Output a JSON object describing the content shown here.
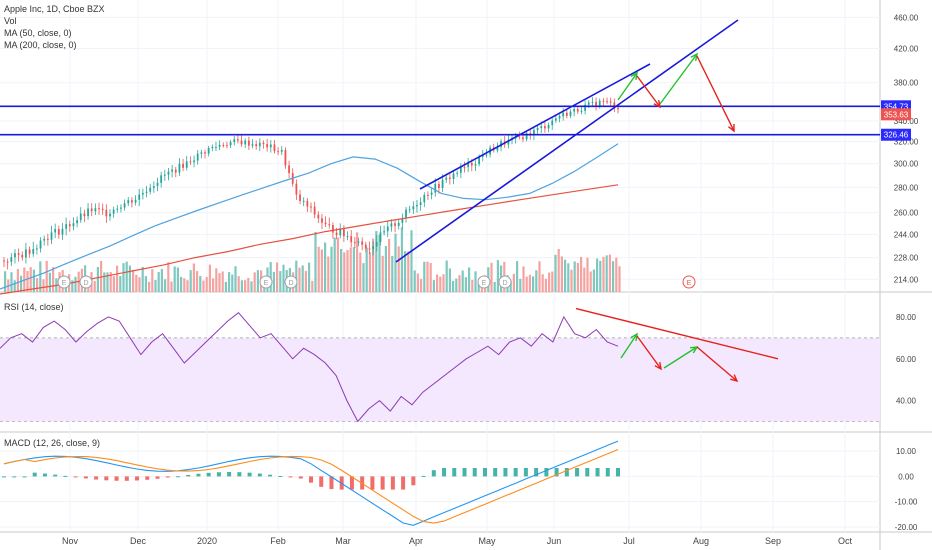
{
  "chart_data": [
    {
      "panel": "price",
      "type": "candlestick",
      "title": "Apple Inc, 1D, Cboe BZX",
      "legend": [
        "Vol",
        "MA (50, close, 0)",
        "MA (200, close, 0)"
      ],
      "x_ticks": [
        "Nov",
        "Dec",
        "2020",
        "Feb",
        "Mar",
        "Apr",
        "May",
        "Jun",
        "Jul",
        "Aug",
        "Sep",
        "Oct"
      ],
      "y_ticks": [
        214.0,
        228.0,
        244.0,
        260.0,
        280.0,
        300.0,
        320.0,
        340.0,
        380.0,
        420.0,
        460.0
      ],
      "ylim": [
        208,
        470
      ],
      "scale": "log",
      "price_labels": [
        {
          "value": "354.73",
          "color": "#2a2aff",
          "y": 354.73
        },
        {
          "value": "353.63",
          "color": "#ef5350",
          "y": 346.5
        },
        {
          "value": "326.46",
          "color": "#2a2aff",
          "y": 326.46
        }
      ],
      "horizontal_lines": [
        354.73,
        326.46
      ],
      "close_series_approx": [
        226,
        229,
        235,
        243,
        248,
        255,
        262,
        260,
        266,
        271,
        281,
        290,
        297,
        305,
        313,
        318,
        320,
        318,
        316,
        310,
        272,
        262,
        250,
        245,
        240,
        235,
        245,
        254,
        265,
        276,
        284,
        293,
        300,
        310,
        318,
        322,
        328,
        335,
        345,
        350,
        356,
        360,
        354
      ],
      "ma50_approx": [
        208,
        213,
        218,
        224,
        230,
        236,
        243,
        250,
        256,
        262,
        268,
        274,
        280,
        286,
        292,
        300,
        306,
        304,
        296,
        285,
        275,
        271,
        270,
        272,
        275,
        283,
        293,
        305,
        318
      ],
      "ma200_approx": [
        205,
        208,
        211,
        215,
        219,
        223,
        228,
        232,
        237,
        241,
        246,
        250,
        254,
        258,
        262,
        266,
        270,
        274,
        278,
        282
      ],
      "event_markers": [
        "E",
        "D",
        "E",
        "D",
        "E",
        "D",
        "E"
      ]
    },
    {
      "panel": "rsi",
      "type": "line",
      "title": "RSI (14, close)",
      "y_ticks": [
        40.0,
        60.0,
        80.0
      ],
      "ylim": [
        25,
        90
      ],
      "band": [
        30,
        70
      ],
      "values_approx": [
        65,
        70,
        72,
        68,
        75,
        78,
        74,
        68,
        73,
        77,
        80,
        78,
        70,
        62,
        68,
        72,
        65,
        58,
        63,
        68,
        73,
        78,
        82,
        76,
        70,
        72,
        66,
        60,
        65,
        62,
        58,
        52,
        40,
        30,
        36,
        40,
        35,
        42,
        38,
        44,
        48,
        52,
        56,
        60,
        63,
        66,
        62,
        68,
        70,
        66,
        72,
        68,
        80,
        72,
        70,
        74,
        68,
        66
      ]
    },
    {
      "panel": "macd",
      "type": "line+bar",
      "title": "MACD (12, 26, close, 9)",
      "y_ticks": [
        10.0,
        0.0,
        -10.0,
        -20.0
      ],
      "ylim": [
        -22,
        16
      ]
    }
  ]
}
